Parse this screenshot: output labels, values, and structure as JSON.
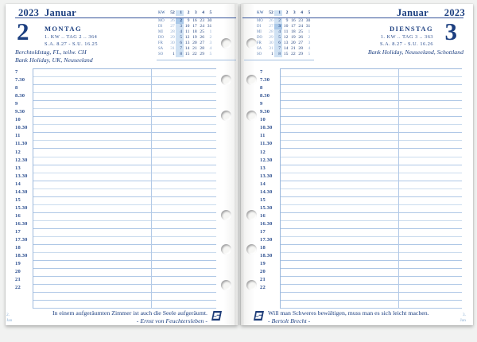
{
  "diary": {
    "brand_logo": "succes-logo"
  },
  "colors": {
    "ink_navy": "#1c3f80",
    "rule_blue": "#35539a",
    "grid_line_light": "#cbdcee",
    "grid_line_dark": "#aec7e6",
    "week_highlight": "#cfe1f3",
    "day_highlight": "#a9c8e8",
    "page_marker_blue": "#8cb0d4"
  },
  "mini_calendar": {
    "week_header_label": "KW",
    "week_numbers": [
      "52",
      "1",
      "2",
      "3",
      "4",
      "5"
    ],
    "highlight_week_index": 1,
    "rows": [
      {
        "label": "MO",
        "values": [
          "26",
          "2",
          "9",
          "16",
          "23",
          "30"
        ],
        "muted_cols": [
          0
        ]
      },
      {
        "label": "DI",
        "values": [
          "27",
          "3",
          "10",
          "17",
          "24",
          "31"
        ],
        "muted_cols": [
          0
        ]
      },
      {
        "label": "MI",
        "values": [
          "28",
          "4",
          "11",
          "18",
          "25",
          "1"
        ],
        "muted_cols": [
          0,
          5
        ]
      },
      {
        "label": "DO",
        "values": [
          "29",
          "5",
          "12",
          "19",
          "26",
          "2"
        ],
        "muted_cols": [
          0,
          5
        ]
      },
      {
        "label": "FR",
        "values": [
          "30",
          "6",
          "13",
          "20",
          "27",
          "3"
        ],
        "muted_cols": [
          0,
          5
        ]
      },
      {
        "label": "SA",
        "values": [
          "31",
          "7",
          "14",
          "21",
          "28",
          "4"
        ],
        "muted_cols": [
          0,
          5
        ]
      },
      {
        "label": "SO",
        "values": [
          "1",
          "8",
          "15",
          "22",
          "29",
          "5"
        ],
        "muted_cols": [
          5
        ]
      }
    ]
  },
  "time_slots": [
    "7",
    "7.30",
    "8",
    "8.30",
    "9",
    "9.30",
    "10",
    "10.30",
    "11",
    "11.30",
    "12",
    "12.30",
    "13",
    "13.30",
    "14",
    "14.30",
    "15",
    "15.30",
    "16",
    "16.30",
    "17",
    "17.30",
    "18",
    "18.30",
    "19",
    "20",
    "21",
    "22"
  ],
  "left_page": {
    "year": "2023",
    "month": "Januar",
    "day_number": "2",
    "weekday": "MONTAG",
    "week_info": "1. KW .. TAG 2 .. 364",
    "sun_info": "S.A. 8.27 - S.U. 16.25",
    "holidays": [
      "Berchtoldstag, FL, teilw. CH",
      "Bank Holiday, UK, Neuseeland"
    ],
    "highlight_day_row": 0,
    "quote": "In einem aufgeräumten Zimmer ist auch die Seele aufgeräumt.",
    "quote_author": "- Ernst von Feuchtersleben -",
    "page_marker": {
      "day": "2.",
      "month": "Jan"
    }
  },
  "right_page": {
    "year": "2023",
    "month": "Januar",
    "day_number": "3",
    "weekday": "DIENSTAG",
    "week_info": "1. KW .. TAG 3 .. 363",
    "sun_info": "S.A. 8.27 - S.U. 16.26",
    "holidays": [
      "Bank Holiday, Neuseeland, Schottland"
    ],
    "highlight_day_row": 1,
    "quote": "Will man Schweres bewältigen, muss man es sich leicht machen.",
    "quote_author": "- Bertolt Brecht -",
    "page_marker": {
      "day": "3.",
      "month": "Jan"
    }
  }
}
